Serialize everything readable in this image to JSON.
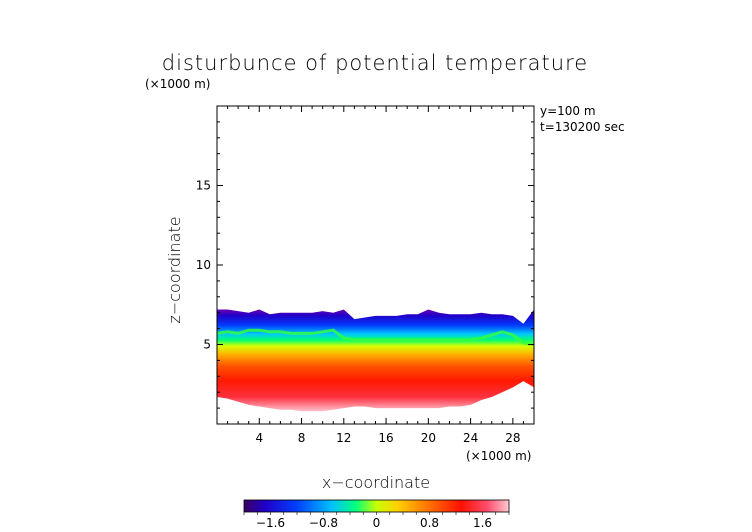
{
  "chart_data": {
    "type": "heatmap",
    "title": "disturbunce of potential temperature",
    "unit_note": "(×1000 m)",
    "info": [
      "y=100  m",
      "t=130200 sec"
    ],
    "xlabel": "x−coordinate",
    "ylabel": "z−coordinate",
    "x_unit": "(×1000 m)",
    "xlim": [
      0,
      30
    ],
    "ylim": [
      0,
      20
    ],
    "xticks": [
      4,
      8,
      12,
      16,
      20,
      24,
      28
    ],
    "yticks": [
      5,
      10,
      15
    ],
    "colorbar": {
      "ticks": [
        "−1.6",
        "−0.8",
        "0",
        "0.8",
        "1.6"
      ],
      "tick_values": [
        -1.6,
        -0.8,
        0,
        0.8,
        1.6
      ],
      "range": [
        -2.0,
        2.0
      ]
    },
    "field": {
      "x": [
        0,
        1,
        2,
        3,
        4,
        5,
        6,
        7,
        8,
        9,
        10,
        11,
        12,
        13,
        14,
        15,
        16,
        17,
        18,
        19,
        20,
        21,
        22,
        23,
        24,
        25,
        26,
        27,
        28,
        29,
        30
      ],
      "top_z": [
        7.2,
        7.2,
        7.1,
        7.0,
        7.2,
        6.9,
        7.0,
        7.0,
        7.0,
        7.0,
        7.1,
        7.0,
        7.2,
        6.6,
        6.7,
        6.8,
        6.8,
        6.8,
        6.9,
        6.9,
        7.2,
        7.0,
        6.9,
        6.9,
        6.9,
        7.0,
        6.9,
        6.9,
        6.8,
        6.3,
        7.2
      ],
      "green_z": [
        5.7,
        5.8,
        5.7,
        5.9,
        5.9,
        5.8,
        5.8,
        5.7,
        5.7,
        5.7,
        5.8,
        5.9,
        5.4,
        5.3,
        5.3,
        5.3,
        5.3,
        5.3,
        5.3,
        5.3,
        5.3,
        5.3,
        5.3,
        5.3,
        5.3,
        5.4,
        5.6,
        5.8,
        5.6,
        5.1,
        5.0
      ],
      "bottom_z": [
        1.7,
        1.6,
        1.4,
        1.2,
        1.1,
        1.0,
        0.9,
        0.9,
        0.8,
        0.8,
        0.8,
        0.9,
        1.0,
        1.1,
        1.1,
        1.0,
        1.0,
        1.0,
        1.0,
        1.0,
        1.0,
        1.0,
        1.1,
        1.1,
        1.2,
        1.5,
        1.7,
        2.0,
        2.3,
        2.7,
        2.3
      ]
    }
  }
}
